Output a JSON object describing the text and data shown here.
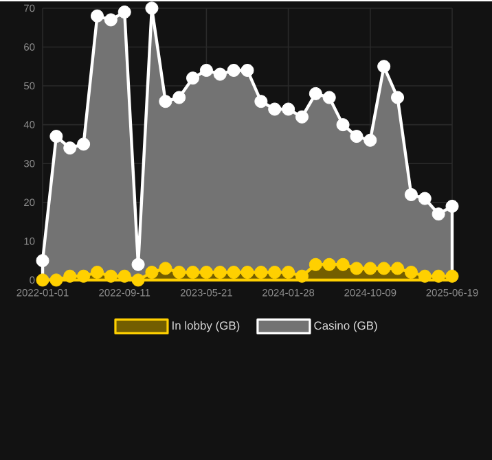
{
  "chart_data": {
    "type": "area",
    "categories": [
      "2022-01-01",
      null,
      null,
      null,
      null,
      null,
      "2022-09-11",
      null,
      null,
      null,
      null,
      null,
      "2023-05-21",
      null,
      null,
      null,
      null,
      null,
      "2024-01-28",
      null,
      null,
      null,
      null,
      null,
      "2024-10-09",
      null,
      null,
      null,
      null,
      null,
      "2025-06-19"
    ],
    "series": [
      {
        "name": "In lobby (GB)",
        "color": "#ffd000",
        "values": [
          0,
          0,
          1,
          1,
          2,
          1,
          1,
          0,
          2,
          3,
          2,
          2,
          2,
          2,
          2,
          2,
          2,
          2,
          2,
          1,
          4,
          4,
          4,
          3,
          3,
          3,
          3,
          2,
          1,
          1,
          1
        ]
      },
      {
        "name": "Casino (GB)",
        "color": "#ffffff",
        "values": [
          5,
          37,
          34,
          35,
          68,
          67,
          69,
          4,
          70,
          46,
          47,
          52,
          54,
          53,
          54,
          54,
          46,
          44,
          44,
          42,
          48,
          47,
          40,
          37,
          36,
          55,
          47,
          22,
          21,
          17,
          19
        ]
      }
    ],
    "ylim": [
      0,
      70
    ],
    "yticks": [
      0,
      10,
      20,
      30,
      40,
      50,
      60,
      70
    ],
    "grid": true,
    "legend": "bottom",
    "marker": "circle"
  }
}
